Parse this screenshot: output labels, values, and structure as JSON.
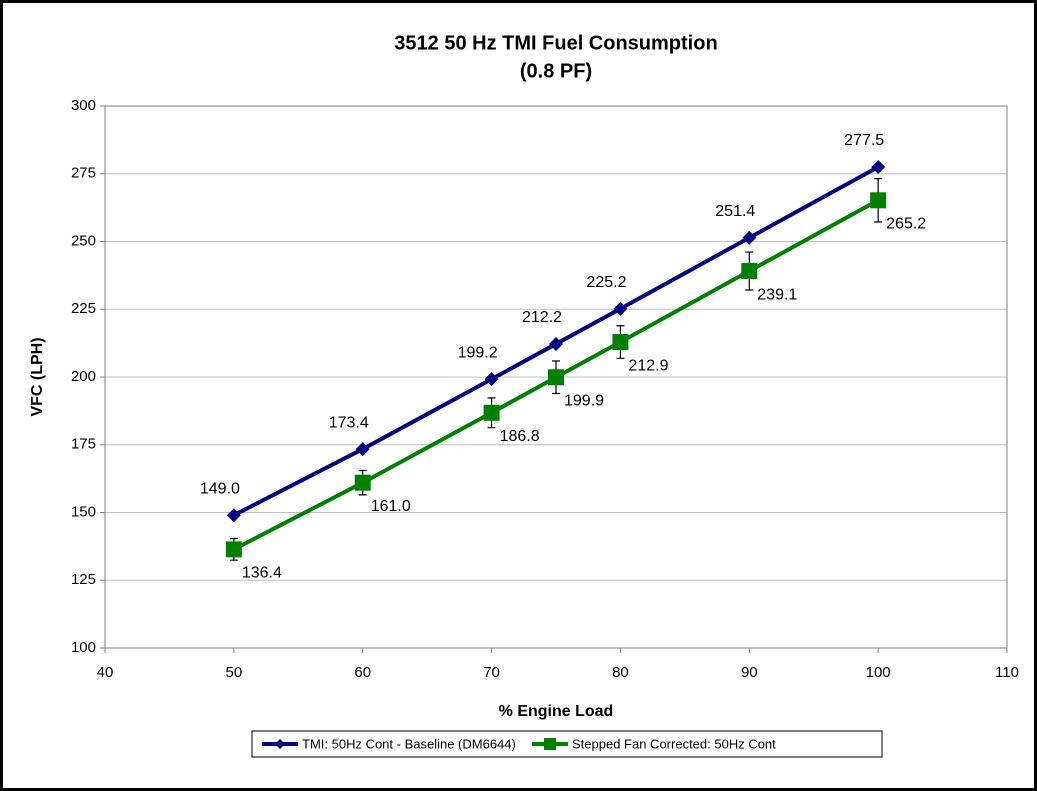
{
  "chart_data": {
    "type": "line",
    "title": "3512 50 Hz TMI Fuel Consumption",
    "subtitle": "(0.8 PF)",
    "x_label": "% Engine Load",
    "y_label": "VFC (LPH)",
    "x": [
      50,
      60,
      70,
      75,
      80,
      90,
      100
    ],
    "xlim": [
      40,
      110
    ],
    "xticks": [
      40,
      50,
      60,
      70,
      80,
      90,
      100,
      110
    ],
    "ylim": [
      100,
      300
    ],
    "yticks": [
      100,
      125,
      150,
      175,
      200,
      225,
      250,
      275,
      300
    ],
    "grid": true,
    "legend": "bottom",
    "series": [
      {
        "name": "TMI: 50Hz Cont - Baseline (DM6644)",
        "color": "#000080",
        "marker": "diamond",
        "values": [
          149.0,
          173.4,
          199.2,
          212.2,
          225.2,
          251.4,
          277.5
        ],
        "value_labels": [
          "149.0",
          "173.4",
          "199.2",
          "212.2",
          "225.2",
          "251.4",
          "277.5"
        ]
      },
      {
        "name": "Stepped Fan Corrected: 50Hz Cont",
        "color": "#008000",
        "marker": "square",
        "values": [
          136.4,
          161.0,
          186.8,
          199.9,
          212.9,
          239.1,
          265.2
        ],
        "value_labels": [
          "136.4",
          "161.0",
          "186.8",
          "199.9",
          "212.9",
          "239.1",
          "265.2"
        ],
        "errors": [
          4,
          4.5,
          5.5,
          6,
          6,
          7,
          8
        ]
      }
    ]
  }
}
